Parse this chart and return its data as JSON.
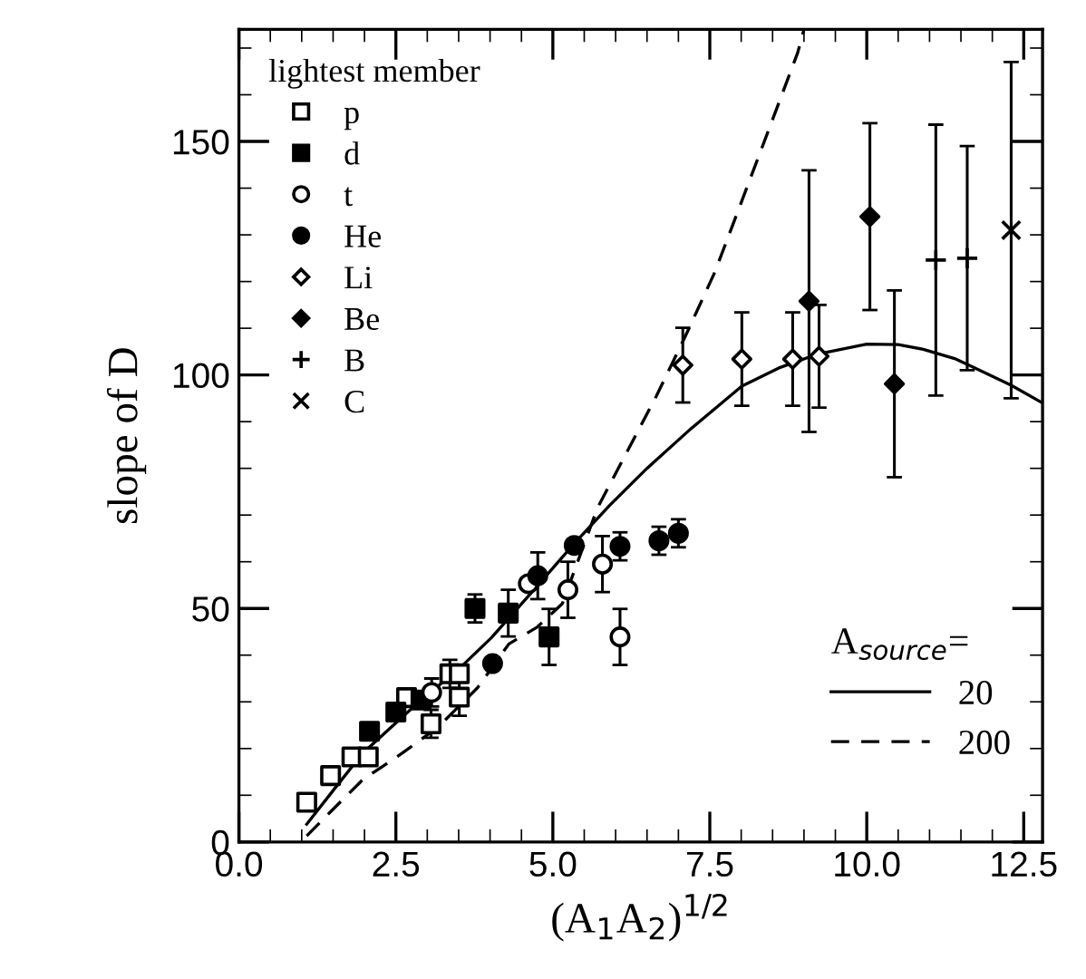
{
  "chart_data": {
    "type": "scatter",
    "xlabel": "(A$_{1}$A$_{2}$)$^{1/2}$",
    "ylabel": "slope of D",
    "legend_title": "lightest member",
    "legend": "top left",
    "xlim": [
      0,
      12.8
    ],
    "ylim": [
      0,
      174
    ],
    "xticks": [
      {
        "value": 0,
        "label": "0.0"
      },
      {
        "value": 2.5,
        "label": "2.5"
      },
      {
        "value": 5,
        "label": "5.0"
      },
      {
        "value": 7.5,
        "label": "7.5"
      },
      {
        "value": 10,
        "label": "10.0"
      },
      {
        "value": 12.5,
        "label": "12.5"
      }
    ],
    "yticks": [
      0,
      50,
      100,
      150
    ],
    "annotations": [
      "A$_{source}$="
    ],
    "series": [
      {
        "name": "p",
        "marker": "square",
        "color": "#ffffff",
        "x": [
          1.08,
          1.46,
          1.8,
          2.06,
          2.67,
          3.06,
          3.36,
          3.51,
          3.51
        ],
        "values": [
          8.5,
          14.2,
          18.2,
          18.2,
          30.9,
          25.3,
          36,
          36,
          31
        ],
        "errors": [
          null,
          null,
          null,
          null,
          null,
          3,
          3,
          null,
          4
        ]
      },
      {
        "name": "d",
        "marker": "square",
        "color": "#000000",
        "x": [
          2.08,
          2.5,
          2.9,
          3.76,
          4.29,
          4.94
        ],
        "values": [
          23.7,
          27.8,
          30.4,
          50,
          49,
          43.9
        ],
        "errors": [
          null,
          null,
          null,
          3,
          5,
          6
        ]
      },
      {
        "name": "t",
        "marker": "circle",
        "color": "#ffffff",
        "x": [
          3.07,
          4.61,
          5.24,
          5.79,
          6.07
        ],
        "values": [
          32,
          55.3,
          54,
          59.5,
          43.9
        ],
        "errors": [
          3,
          null,
          6,
          6,
          6
        ]
      },
      {
        "name": "He",
        "marker": "circle",
        "color": "#000000",
        "x": [
          4.04,
          4.76,
          5.34,
          6.07,
          6.69,
          7.0
        ],
        "values": [
          38.2,
          57,
          63.5,
          63.3,
          64.5,
          66.1
        ],
        "errors": [
          null,
          5,
          null,
          3,
          3,
          3
        ]
      },
      {
        "name": "Li",
        "marker": "diamond",
        "color": "#ffffff",
        "x": [
          7.07,
          8.01,
          8.82,
          9.24
        ],
        "values": [
          102.1,
          103.4,
          103.4,
          104
        ],
        "errors": [
          8,
          10,
          10,
          11
        ]
      },
      {
        "name": "Be",
        "marker": "diamond",
        "color": "#000000",
        "x": [
          9.08,
          10.05,
          10.44
        ],
        "values": [
          115.8,
          133.9,
          98.1
        ],
        "errors": [
          28,
          20,
          20
        ]
      },
      {
        "name": "B",
        "marker": "plus",
        "color": "#000000",
        "x": [
          11.1,
          11.6
        ],
        "values": [
          124.6,
          125
        ],
        "errors": [
          29,
          24
        ]
      },
      {
        "name": "C",
        "marker": "cross",
        "color": "#000000",
        "x": [
          12.3
        ],
        "values": [
          131
        ],
        "errors": [
          [
            95,
            167
          ]
        ]
      },
      {
        "name": "20",
        "type": "line",
        "line_style": "solid",
        "color": "#000000",
        "x": [
          1.08,
          1.5,
          1.97,
          2.9,
          3.5,
          4.02,
          4.7,
          5.34,
          5.9,
          6.5,
          7.2,
          8.01,
          8.6,
          9.2,
          10.0,
          10.5,
          10.9,
          11.4,
          11.8,
          12.3,
          12.8
        ],
        "values": [
          3.8,
          11,
          19,
          30.4,
          37,
          43.7,
          54,
          63.9,
          72,
          80,
          88.5,
          97.6,
          101.5,
          104.4,
          106.6,
          106.5,
          105.5,
          103.5,
          101,
          97.8,
          94
        ]
      },
      {
        "name": "200",
        "type": "line",
        "line_style": "dashed",
        "color": "#000000",
        "x": [
          1.08,
          1.5,
          1.97,
          2.6,
          3.18,
          3.8,
          4.3,
          4.75,
          5.15,
          5.71,
          6.2,
          6.65,
          7.1,
          7.58,
          8.2,
          8.9,
          9.0
        ],
        "values": [
          1.3,
          7,
          13.3,
          19,
          24.7,
          33,
          42.4,
          46,
          51,
          71.5,
          84,
          95.5,
          108,
          122,
          144,
          169,
          174
        ]
      }
    ]
  }
}
